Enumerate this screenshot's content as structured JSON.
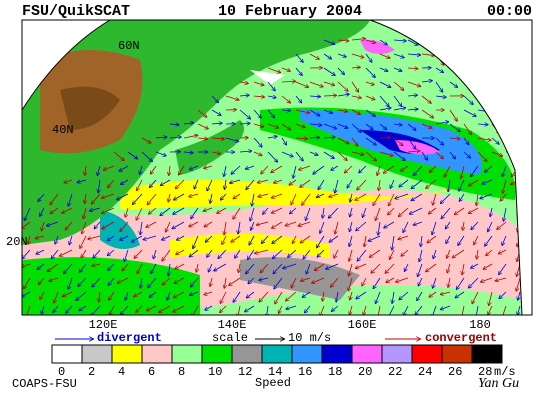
{
  "header": {
    "left": "FSU/QuikSCAT",
    "center": "10 February 2004",
    "right": "00:00"
  },
  "map": {
    "lat_labels": [
      "60N",
      "40N",
      "20N"
    ],
    "lon_labels": [
      "120E",
      "140E",
      "160E",
      "180"
    ]
  },
  "legend": {
    "divergent": "divergent",
    "scale": "scale",
    "scale_value": "10 m/s",
    "convergent": "convergent"
  },
  "colorbar": {
    "title": "Speed",
    "unit": "m/s",
    "ticks": [
      0,
      2,
      4,
      6,
      8,
      10,
      12,
      14,
      16,
      18,
      20,
      22,
      24,
      26,
      28
    ],
    "colors": [
      "#ffffff",
      "#c8c8c8",
      "#ffff00",
      "#ffc8c8",
      "#96ff96",
      "#00e000",
      "#969696",
      "#00b4b4",
      "#3296ff",
      "#0000d0",
      "#ff64ff",
      "#b496ff",
      "#ff0000",
      "#c83200",
      "#000000"
    ]
  },
  "footer": {
    "left": "COAPS-FSU",
    "signature": "Yan Gu"
  }
}
